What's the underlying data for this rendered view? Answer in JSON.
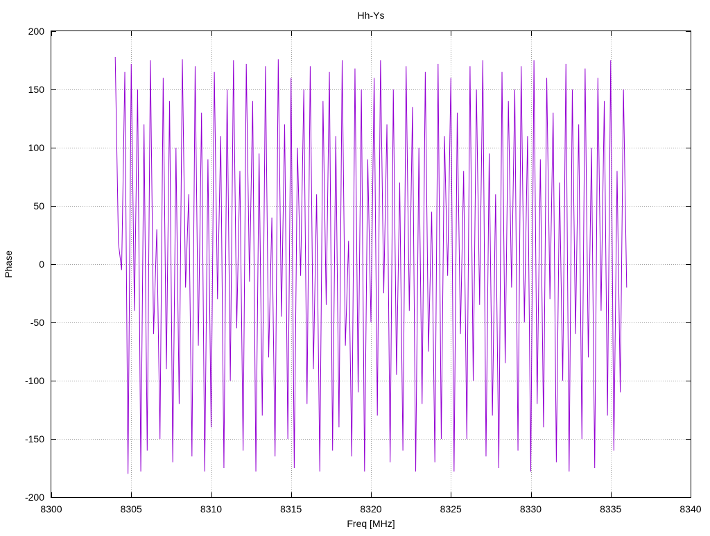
{
  "chart_data": {
    "type": "line",
    "title": "Hh-Ys",
    "xlabel": "Freq [MHz]",
    "ylabel": "Phase",
    "xlim": [
      8300,
      8340
    ],
    "ylim": [
      -200,
      200
    ],
    "x_ticks": [
      8300,
      8305,
      8310,
      8315,
      8320,
      8325,
      8330,
      8335,
      8340
    ],
    "y_ticks": [
      -200,
      -150,
      -100,
      -50,
      0,
      50,
      100,
      150,
      200
    ],
    "grid": true,
    "legend": "none",
    "series": [
      {
        "color": "#9400d3",
        "x": [
          8304.0,
          8304.2,
          8304.4,
          8304.6,
          8304.8,
          8305.0,
          8305.2,
          8305.4,
          8305.6,
          8305.8,
          8306.0,
          8306.2,
          8306.4,
          8306.6,
          8306.8,
          8307.0,
          8307.2,
          8307.4,
          8307.6,
          8307.8,
          8308.0,
          8308.2,
          8308.4,
          8308.6,
          8308.8,
          8309.0,
          8309.2,
          8309.4,
          8309.6,
          8309.8,
          8310.0,
          8310.2,
          8310.4,
          8310.6,
          8310.8,
          8311.0,
          8311.2,
          8311.4,
          8311.6,
          8311.8,
          8312.0,
          8312.2,
          8312.4,
          8312.6,
          8312.8,
          8313.0,
          8313.2,
          8313.4,
          8313.6,
          8313.8,
          8314.0,
          8314.2,
          8314.4,
          8314.6,
          8314.8,
          8315.0,
          8315.2,
          8315.4,
          8315.6,
          8315.8,
          8316.0,
          8316.2,
          8316.4,
          8316.6,
          8316.8,
          8317.0,
          8317.2,
          8317.4,
          8317.6,
          8317.8,
          8318.0,
          8318.2,
          8318.4,
          8318.6,
          8318.8,
          8319.0,
          8319.2,
          8319.4,
          8319.6,
          8319.8,
          8320.0,
          8320.2,
          8320.4,
          8320.6,
          8320.8,
          8321.0,
          8321.2,
          8321.4,
          8321.6,
          8321.8,
          8322.0,
          8322.2,
          8322.4,
          8322.6,
          8322.8,
          8323.0,
          8323.2,
          8323.4,
          8323.6,
          8323.8,
          8324.0,
          8324.2,
          8324.4,
          8324.6,
          8324.8,
          8325.0,
          8325.2,
          8325.4,
          8325.6,
          8325.8,
          8326.0,
          8326.2,
          8326.4,
          8326.6,
          8326.8,
          8327.0,
          8327.2,
          8327.4,
          8327.6,
          8327.8,
          8328.0,
          8328.2,
          8328.4,
          8328.6,
          8328.8,
          8329.0,
          8329.2,
          8329.4,
          8329.6,
          8329.8,
          8330.0,
          8330.2,
          8330.4,
          8330.6,
          8330.8,
          8331.0,
          8331.2,
          8331.4,
          8331.6,
          8331.8,
          8332.0,
          8332.2,
          8332.4,
          8332.6,
          8332.8,
          8333.0,
          8333.2,
          8333.4,
          8333.6,
          8333.8,
          8334.0,
          8334.2,
          8334.4,
          8334.6,
          8334.8,
          8335.0,
          8335.2,
          8335.4,
          8335.6,
          8335.8,
          8336.0
        ],
        "y": [
          178,
          18,
          -5,
          165,
          -180,
          172,
          -40,
          150,
          -178,
          120,
          -160,
          175,
          -60,
          30,
          -150,
          160,
          -90,
          140,
          -170,
          100,
          -120,
          176,
          -20,
          60,
          -165,
          170,
          -70,
          130,
          -178,
          90,
          -140,
          165,
          -30,
          110,
          -175,
          150,
          -100,
          175,
          -55,
          80,
          -160,
          172,
          -15,
          140,
          -178,
          95,
          -130,
          170,
          -80,
          40,
          -165,
          176,
          -45,
          120,
          -150,
          160,
          -175,
          100,
          -10,
          150,
          -120,
          170,
          -90,
          60,
          -178,
          140,
          -35,
          165,
          -160,
          110,
          -140,
          175,
          -70,
          20,
          -165,
          168,
          -110,
          150,
          -178,
          90,
          -50,
          160,
          -130,
          175,
          -25,
          120,
          -170,
          150,
          -95,
          70,
          -160,
          170,
          -40,
          135,
          -178,
          100,
          -120,
          165,
          -75,
          45,
          -170,
          172,
          -150,
          110,
          -10,
          160,
          -178,
          130,
          -60,
          80,
          -150,
          170,
          -100,
          150,
          -35,
          175,
          -165,
          95,
          -130,
          60,
          -175,
          165,
          -85,
          140,
          -20,
          150,
          -160,
          170,
          -50,
          110,
          -178,
          175,
          -120,
          90,
          -140,
          160,
          -30,
          130,
          -170,
          70,
          -100,
          172,
          -178,
          150,
          -60,
          120,
          -150,
          168,
          -80,
          100,
          -175,
          160,
          -40,
          140,
          -130,
          175,
          -160,
          80,
          -110,
          150,
          -20
        ]
      }
    ]
  }
}
